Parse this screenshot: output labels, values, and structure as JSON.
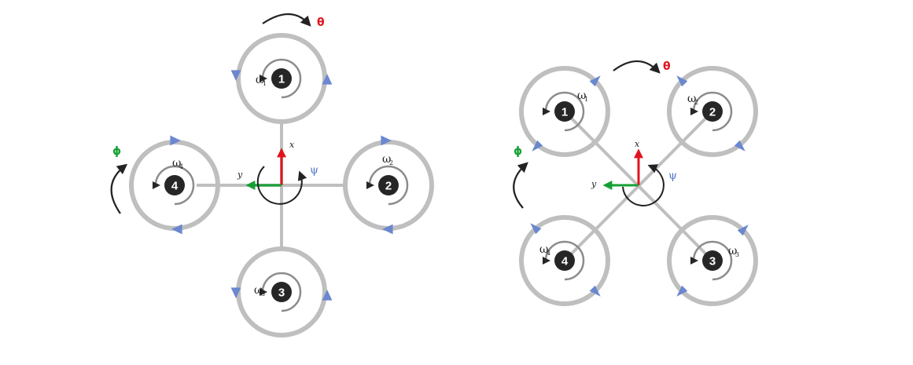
{
  "colors": {
    "frame": "#bfbfbf",
    "inner_arc": "#8c8c8c",
    "prop_arrow": "#6b87cf",
    "hub": "#262626",
    "x_axis": "#e0141e",
    "y_axis": "#15a034",
    "theta": "#e0141e",
    "phi": "#15a034",
    "psi": "#5577c8",
    "curve": "#222222"
  },
  "diagrams": [
    {
      "config": "plus",
      "theta_label": "θ",
      "phi_label": "ϕ",
      "psi_label": "ψ",
      "x_label": "x",
      "y_label": "y",
      "rotors": [
        {
          "number": "1",
          "omega_symbol": "ω",
          "omega_sub": "1"
        },
        {
          "number": "2",
          "omega_symbol": "ω",
          "omega_sub": "2"
        },
        {
          "number": "3",
          "omega_symbol": "ω",
          "omega_sub": "3"
        },
        {
          "number": "4",
          "omega_symbol": "ω",
          "omega_sub": "4"
        }
      ]
    },
    {
      "config": "x",
      "theta_label": "θ",
      "phi_label": "ϕ",
      "psi_label": "ψ",
      "x_label": "x",
      "y_label": "y",
      "rotors": [
        {
          "number": "1",
          "omega_symbol": "ω",
          "omega_sub": "1"
        },
        {
          "number": "2",
          "omega_symbol": "ω",
          "omega_sub": "2"
        },
        {
          "number": "3",
          "omega_symbol": "ω",
          "omega_sub": "3"
        },
        {
          "number": "4",
          "omega_symbol": "ω",
          "omega_sub": "4"
        }
      ]
    }
  ]
}
